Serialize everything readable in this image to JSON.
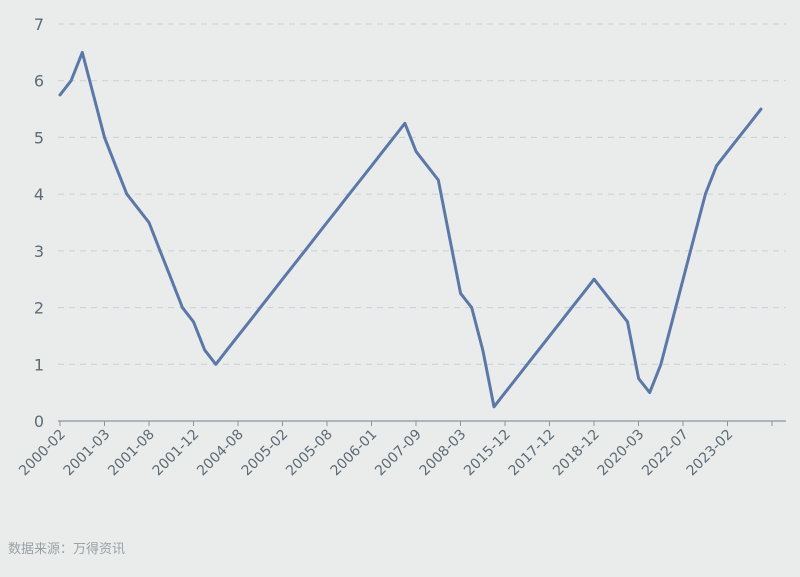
{
  "chart_data": {
    "type": "line",
    "title": "",
    "xlabel": "",
    "ylabel": "",
    "ylim": [
      0,
      7
    ],
    "yticks": [
      0,
      1,
      2,
      3,
      4,
      5,
      6,
      7
    ],
    "grid": true,
    "legend": "none",
    "line_color": "#5b78a8",
    "x_tick_labels": [
      "2000-02",
      "2001-03",
      "2001-08",
      "2001-12",
      "2004-08",
      "2005-02",
      "2005-08",
      "2006-01",
      "2007-09",
      "2008-03",
      "2015-12",
      "2017-12",
      "2018-12",
      "2020-03",
      "2022-07",
      "2023-02"
    ],
    "series": [
      {
        "values": [
          5.75,
          6.0,
          6.5,
          5.75,
          5.0,
          4.5,
          4.0,
          3.75,
          3.5,
          3.0,
          2.5,
          2.0,
          1.75,
          1.25,
          1.0,
          1.25,
          1.5,
          1.75,
          2.0,
          2.25,
          2.5,
          2.75,
          3.0,
          3.25,
          3.5,
          3.75,
          4.0,
          4.25,
          4.5,
          4.75,
          5.0,
          5.25,
          4.75,
          4.5,
          4.25,
          3.25,
          2.25,
          2.0,
          1.25,
          0.25,
          0.5,
          0.75,
          1.0,
          1.25,
          1.5,
          1.75,
          2.0,
          2.25,
          2.5,
          2.25,
          2.0,
          1.75,
          0.75,
          0.5,
          1.0,
          1.75,
          2.5,
          3.25,
          4.0,
          4.5,
          4.75,
          5.0,
          5.25,
          5.5
        ]
      }
    ]
  },
  "source_text": "数据来源：万得资讯"
}
